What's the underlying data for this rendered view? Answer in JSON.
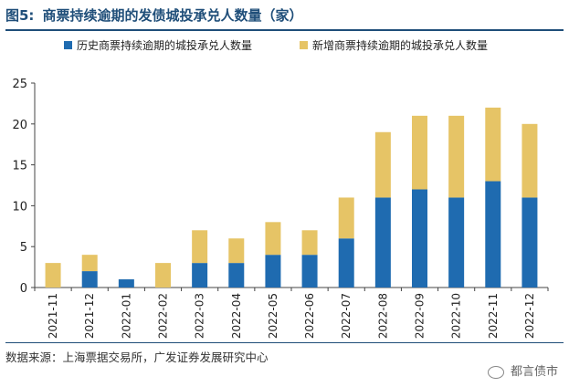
{
  "header": {
    "figure_label": "图5:",
    "title": "商票持续逾期的发债城投承兑人数量（家）"
  },
  "footer": {
    "source": "数据来源：上海票据交易所，广发证券发展研究中心",
    "watermark": "都言债市"
  },
  "chart_data": {
    "type": "bar",
    "stacked": true,
    "categories": [
      "2021-11",
      "2021-12",
      "2022-01",
      "2022-02",
      "2022-03",
      "2022-04",
      "2022-05",
      "2022-06",
      "2022-07",
      "2022-08",
      "2022-09",
      "2022-10",
      "2022-11",
      "2022-12"
    ],
    "series": [
      {
        "name": "历史商票持续逾期的城投承兑人数量",
        "color": "#1f6bb0",
        "values": [
          0,
          2,
          1,
          0,
          3,
          3,
          4,
          4,
          6,
          11,
          12,
          11,
          13,
          11
        ]
      },
      {
        "name": "新增商票持续逾期的城投承兑人数量",
        "color": "#e6c466",
        "values": [
          3,
          2,
          0,
          3,
          4,
          3,
          4,
          3,
          5,
          8,
          9,
          10,
          9,
          9
        ]
      }
    ],
    "yticks": [
      0,
      5,
      10,
      15,
      20,
      25
    ],
    "ylim": [
      0,
      25
    ],
    "legend_position": "top",
    "grid": false
  }
}
